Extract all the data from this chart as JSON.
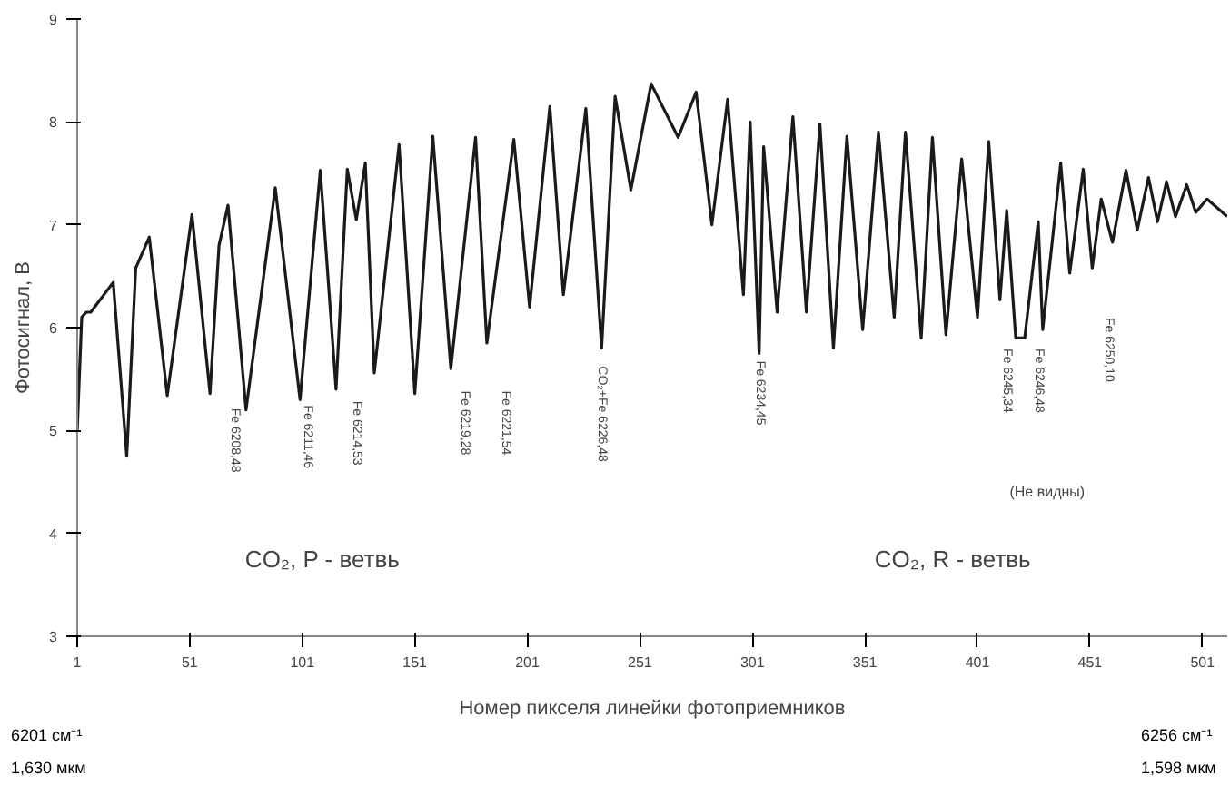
{
  "chart_data": {
    "type": "line",
    "xlabel": "Номер пикселя линейки фотоприемников",
    "ylabel": "Фотосигнал, В",
    "x": [
      1,
      3,
      5,
      7,
      17,
      23,
      27,
      33,
      41,
      52,
      60,
      64,
      68,
      76,
      89,
      100,
      109,
      116,
      121,
      125,
      129,
      133,
      144,
      151,
      159,
      167,
      178,
      183,
      195,
      202,
      211,
      217,
      227,
      234,
      240,
      247,
      256,
      268,
      276,
      283,
      290,
      297,
      300,
      304,
      306,
      312,
      319,
      325,
      331,
      337,
      343,
      350,
      357,
      364,
      369,
      376,
      381,
      387,
      394,
      401,
      406,
      411,
      414,
      418,
      422,
      428,
      430,
      438,
      442,
      448,
      452,
      456,
      461,
      467,
      472,
      477,
      481,
      485,
      489,
      494,
      498,
      503,
      512
    ],
    "series": [
      {
        "color": "#1a1a1a",
        "values": [
          5.0,
          6.1,
          6.15,
          6.15,
          6.44,
          4.75,
          6.58,
          6.88,
          5.34,
          7.1,
          5.36,
          6.8,
          7.19,
          5.2,
          7.36,
          5.3,
          7.53,
          5.4,
          7.54,
          7.05,
          7.6,
          5.56,
          7.78,
          5.36,
          7.86,
          5.6,
          7.85,
          5.85,
          7.83,
          6.2,
          8.15,
          6.32,
          8.13,
          5.8,
          8.25,
          7.34,
          8.37,
          7.85,
          8.29,
          7.0,
          8.22,
          6.32,
          8.0,
          5.75,
          7.76,
          6.15,
          8.05,
          6.15,
          7.98,
          5.8,
          7.86,
          5.98,
          7.9,
          6.1,
          7.9,
          5.9,
          7.85,
          5.93,
          7.64,
          6.1,
          7.81,
          6.27,
          7.14,
          5.9,
          5.9,
          7.03,
          5.98,
          7.6,
          6.53,
          7.54,
          6.58,
          7.25,
          6.83,
          7.53,
          6.95,
          7.46,
          7.03,
          7.42,
          7.08,
          7.39,
          7.12,
          7.25,
          7.08
        ]
      }
    ],
    "xlim": [
      1,
      512
    ],
    "ylim": [
      3,
      9
    ],
    "xticks": [
      1,
      51,
      101,
      151,
      201,
      251,
      301,
      351,
      401,
      451,
      501
    ],
    "yticks": [
      3,
      4,
      5,
      6,
      7,
      8,
      9
    ],
    "line_style": "solid",
    "annotations": [
      "Fe 6208,48",
      "Fe 6211,46",
      "Fe 6214,53",
      "Fe 6219,28",
      "Fe 6221,54",
      "CO₂+Fe 6226,48",
      "Fe 6234,45",
      "Fe 6245,34",
      "Fe 6246,48",
      "Fe 6250,10",
      "(Не видны)",
      "CO₂, P - ветвь",
      "CO₂, R - ветвь",
      "6201 см⁻¹",
      "1,630 мкм",
      "6256 см⁻¹",
      "1,598 мкм"
    ]
  }
}
